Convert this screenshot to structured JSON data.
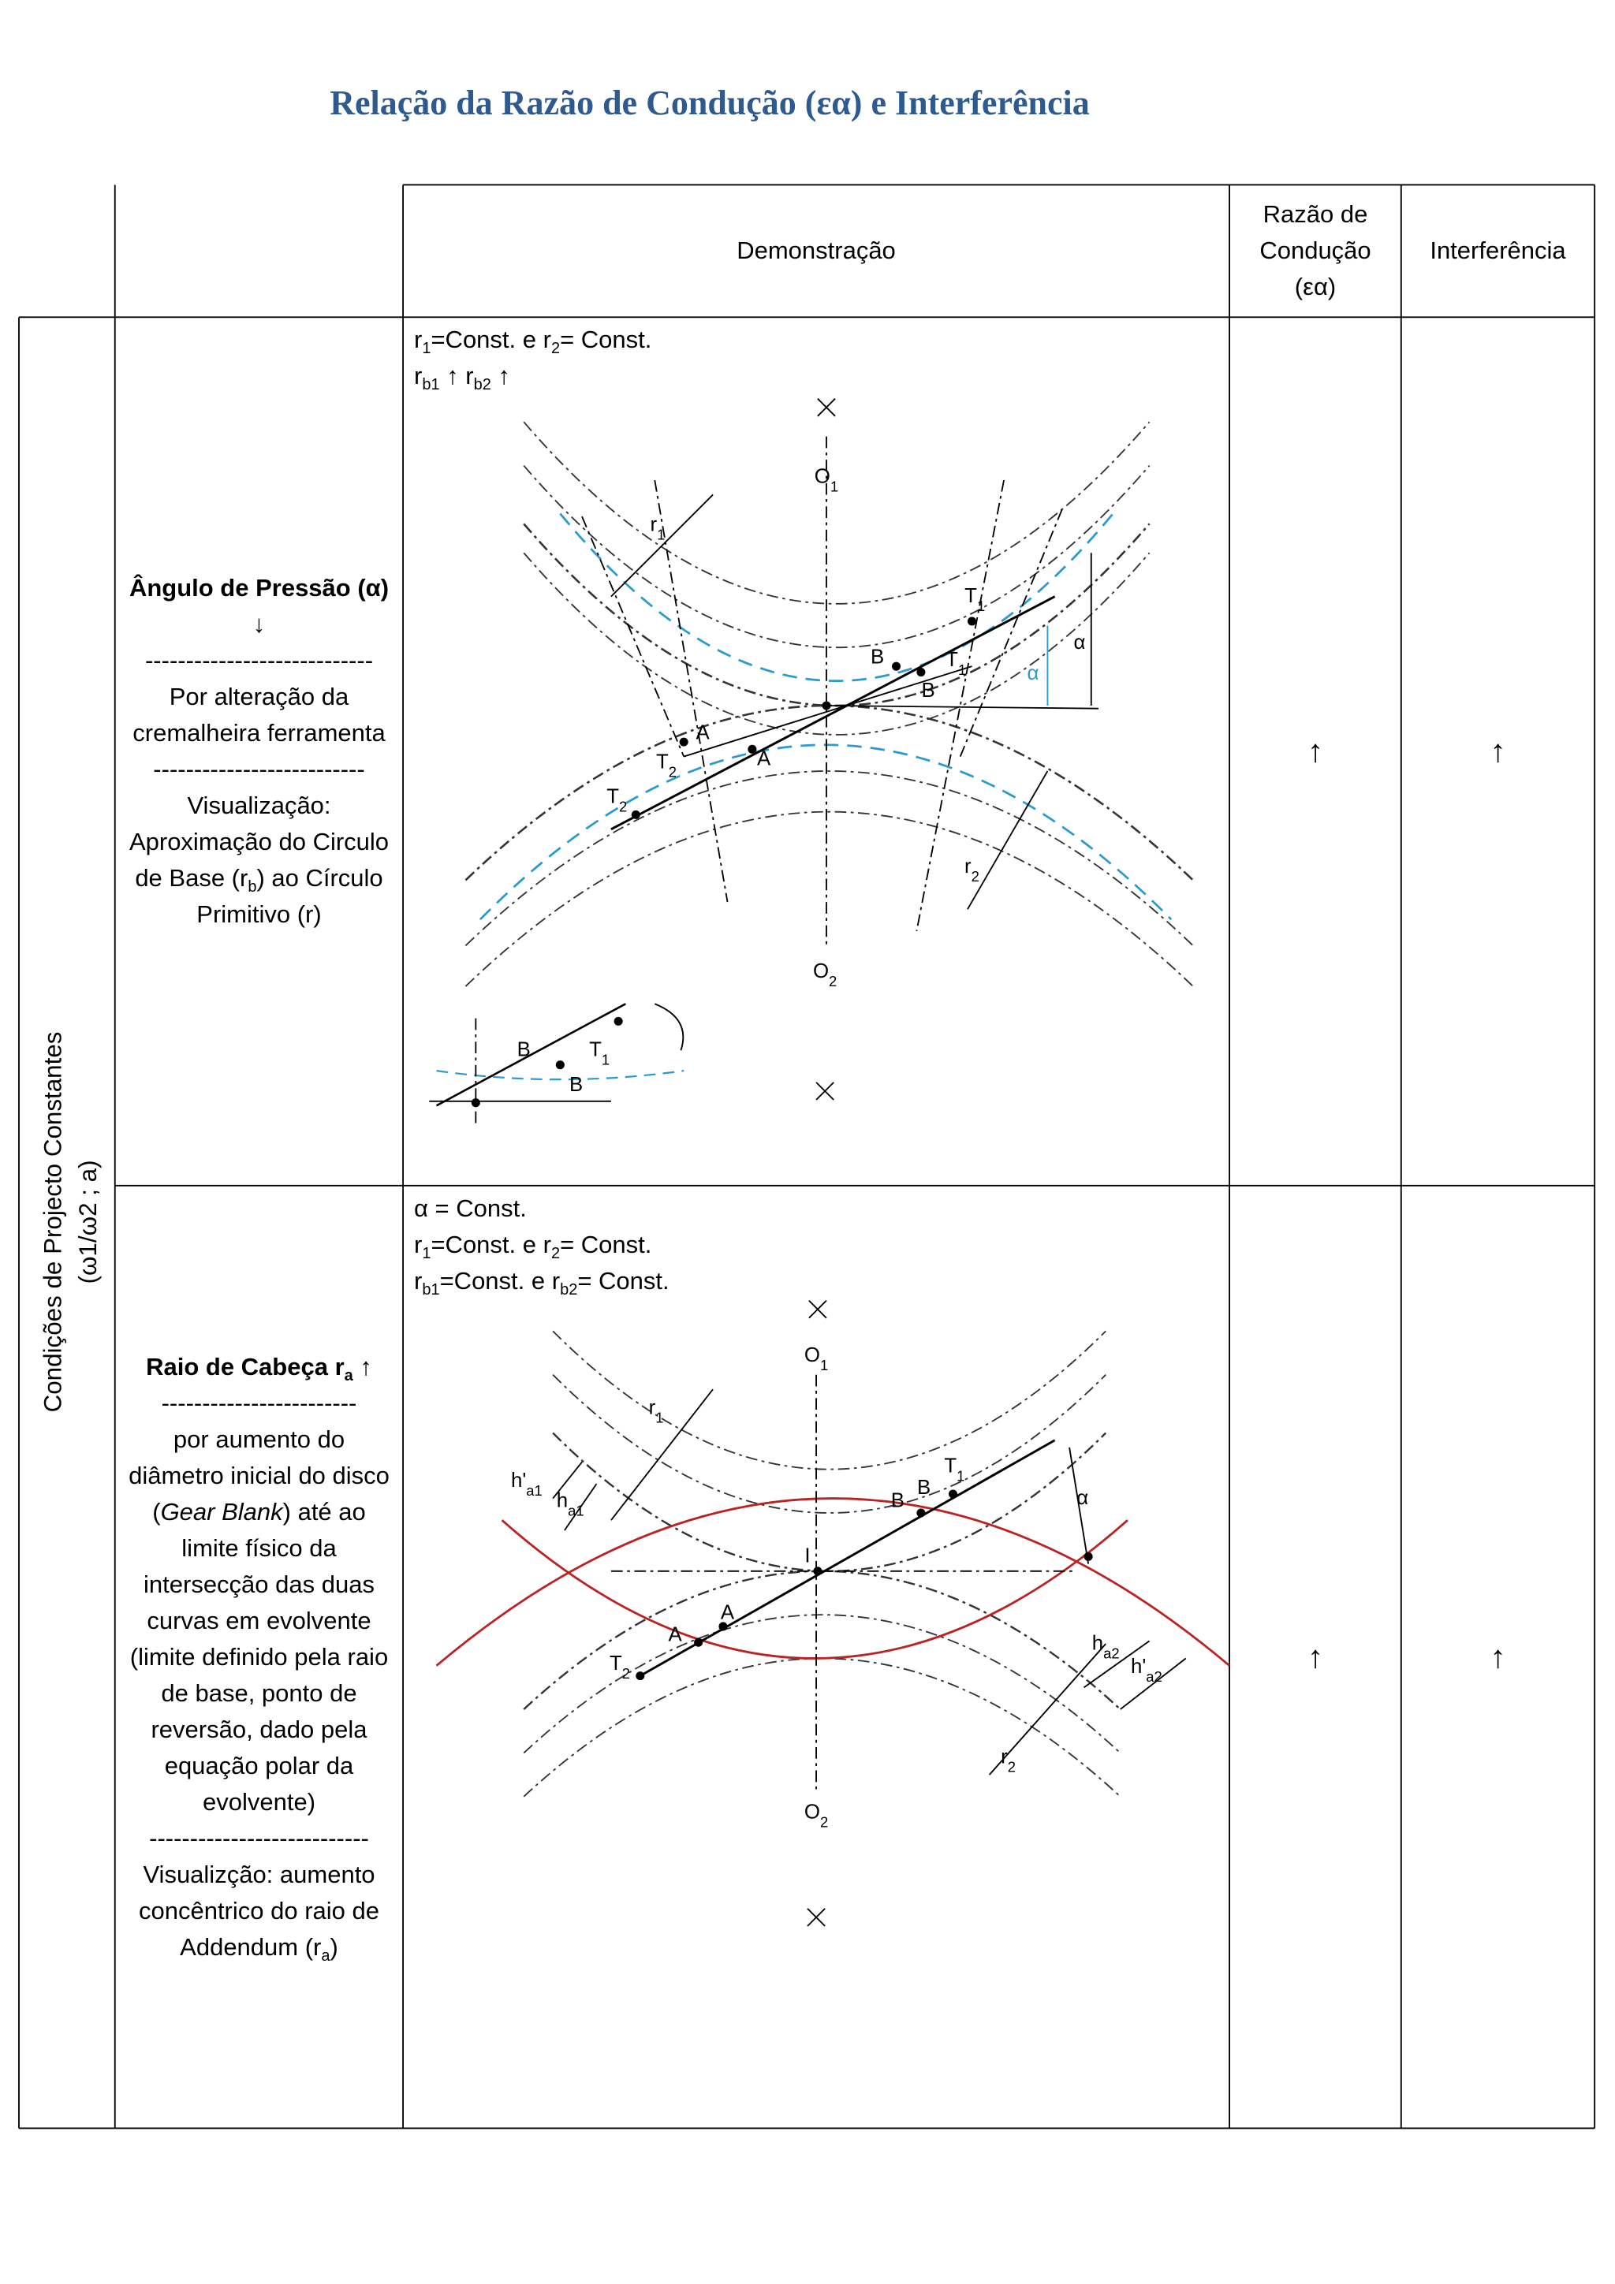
{
  "title": "Relação da Razão de Condução (εα) e Interferência",
  "header": {
    "demo": "Demonstração",
    "ratio": [
      "Razão de",
      "Condução",
      "(εα)"
    ],
    "interference": "Interferência"
  },
  "side_label": [
    "Condições de Projecto Constantes",
    "(ω1/ω2 ; a)"
  ],
  "rows": [
    {
      "label": [
        [
          "Ângulo de Pressão (α) ↓"
        ],
        [
          "----------------------------"
        ],
        [
          "Por alteração da cremalheira ferramenta"
        ],
        [
          "--------------------------"
        ],
        [
          "Visualização: Aproximação do Circulo de Base (r",
          {
            "sub": "b"
          },
          ") ao Círculo Primitivo (r)"
        ]
      ],
      "conditions": [
        [
          "r",
          {
            "sub": "1"
          },
          "=Const. e r",
          {
            "sub": "2"
          },
          "= Const."
        ],
        [
          "r",
          {
            "sub": "b1"
          },
          " ↑   r",
          {
            "sub": "b2"
          },
          " ↑"
        ]
      ],
      "ratio": "↑",
      "interference": "↑",
      "diagram_labels": [
        [
          "O",
          {
            "sub": "1"
          }
        ],
        [
          "O",
          {
            "sub": "2"
          }
        ],
        [
          "T",
          {
            "sub": "1"
          }
        ],
        [
          "B"
        ],
        [
          "T",
          {
            "sub": "1"
          }
        ],
        [
          "B"
        ],
        [
          "A"
        ],
        [
          "A"
        ],
        [
          "T",
          {
            "sub": "2"
          }
        ],
        [
          "T",
          {
            "sub": "2"
          }
        ],
        [
          "r",
          {
            "sub": "1"
          }
        ],
        [
          "r",
          {
            "sub": "2"
          }
        ],
        [
          "α"
        ],
        [
          "α"
        ],
        [
          "B"
        ],
        [
          "T",
          {
            "sub": "1"
          }
        ],
        [
          "B"
        ]
      ]
    },
    {
      "label": [
        [
          "Raio de Cabeça r",
          {
            "sub": "a"
          },
          " ↑"
        ],
        [
          "------------------------"
        ],
        [
          "por aumento do diâmetro inicial do disco (",
          {
            "i": "Gear Blank"
          },
          ") até ao limite físico da intersecção das duas curvas em evolvente (limite definido pela raio de base, ponto de reversão, dado pela equação polar da evolvente)"
        ],
        [
          "---------------------------"
        ],
        [
          "Visualizção: aumento concêntrico do raio de Addendum (r",
          {
            "sub": "a"
          },
          ")"
        ]
      ],
      "conditions": [
        [
          "α = Const."
        ],
        [
          "r",
          {
            "sub": "1"
          },
          "=Const. e r",
          {
            "sub": "2"
          },
          "= Const."
        ],
        [
          "r",
          {
            "sub": "b1"
          },
          "=Const. e r",
          {
            "sub": "b2"
          },
          "= Const."
        ]
      ],
      "ratio": "↑",
      "interference": "↑",
      "diagram_labels": [
        [
          "O",
          {
            "sub": "1"
          }
        ],
        [
          "O",
          {
            "sub": "2"
          }
        ],
        [
          "T",
          {
            "sub": "1"
          }
        ],
        [
          "B"
        ],
        [
          "B"
        ],
        [
          "I"
        ],
        [
          "A"
        ],
        [
          "A"
        ],
        [
          "T",
          {
            "sub": "2"
          }
        ],
        [
          "r",
          {
            "sub": "1"
          }
        ],
        [
          "r",
          {
            "sub": "2"
          }
        ],
        [
          "α"
        ],
        [
          "h'",
          {
            "sub": "a1"
          }
        ],
        [
          "h",
          {
            "sub": "a1"
          }
        ],
        [
          "h",
          {
            "sub": "a2"
          }
        ],
        [
          "h'",
          {
            "sub": "a2"
          }
        ]
      ]
    }
  ]
}
